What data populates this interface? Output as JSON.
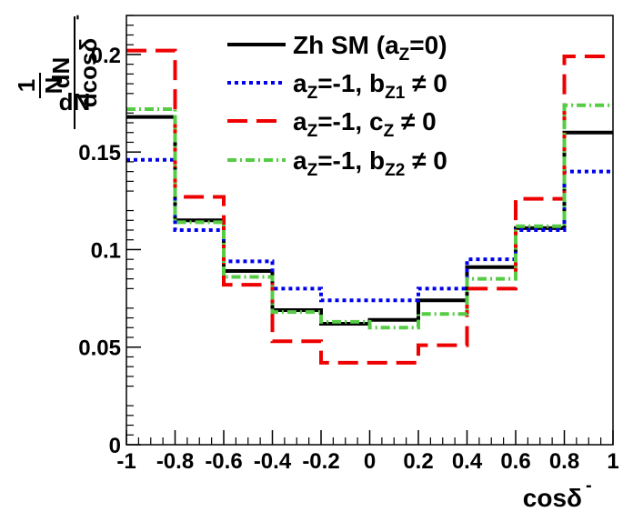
{
  "chart_data": {
    "type": "step-histogram",
    "title": "",
    "xlabel": "cosδ",
    "xlabel_superscript": "-",
    "ylabel": "1/N dN/dcosδ",
    "ylabel_parts": {
      "one": "1",
      "N": "N",
      "dN": "dN",
      "dcos": "dcosδ",
      "dcos_superscript": "-"
    },
    "xlim": [
      -1,
      1
    ],
    "ylim": [
      0,
      0.22
    ],
    "xticks": [
      "-1",
      "-0.8",
      "-0.6",
      "-0.4",
      "-0.2",
      "0",
      "0.2",
      "0.4",
      "0.6",
      "0.8",
      "1"
    ],
    "yticks": [
      "0",
      "0.05",
      "0.1",
      "0.15",
      "0.2"
    ],
    "bin_edges": [
      -1,
      -0.8,
      -0.6,
      -0.4,
      -0.2,
      0,
      0.2,
      0.4,
      0.6,
      0.8,
      1
    ],
    "series": [
      {
        "name": "Zh SM (a_Z=0)",
        "legend_main": "Zh SM (a",
        "legend_sub": "Z",
        "legend_tail": "=0)",
        "color": "#000000",
        "style": "solid",
        "values": [
          0.168,
          0.115,
          0.089,
          0.069,
          0.062,
          0.064,
          0.074,
          0.091,
          0.111,
          0.16
        ]
      },
      {
        "name": "a_Z=-1, b_Z1 ≠ 0",
        "legend_main": "a",
        "legend_sub": "Z",
        "legend_mid": "=-1, b",
        "legend_sub2": "Z1",
        "legend_tail": "≠ 0",
        "color": "#0000ee",
        "style": "dotted",
        "values": [
          0.146,
          0.11,
          0.094,
          0.08,
          0.074,
          0.074,
          0.08,
          0.095,
          0.11,
          0.14
        ]
      },
      {
        "name": "a_Z=-1, c_Z ≠ 0",
        "legend_main": "a",
        "legend_sub": "Z",
        "legend_mid": "=-1, c",
        "legend_sub2": "Z",
        "legend_tail": "≠ 0",
        "color": "#ee0000",
        "style": "dashed",
        "values": [
          0.202,
          0.127,
          0.082,
          0.053,
          0.042,
          0.042,
          0.051,
          0.08,
          0.126,
          0.199
        ]
      },
      {
        "name": "a_Z=-1, b_Z2 ≠ 0",
        "legend_main": "a",
        "legend_sub": "Z",
        "legend_mid": "=-1, b",
        "legend_sub2": "Z2",
        "legend_tail": "≠ 0",
        "color": "#55cc44",
        "style": "dashdot",
        "values": [
          0.172,
          0.114,
          0.086,
          0.068,
          0.063,
          0.06,
          0.067,
          0.085,
          0.112,
          0.174
        ]
      }
    ],
    "legend_position": "top-center"
  }
}
